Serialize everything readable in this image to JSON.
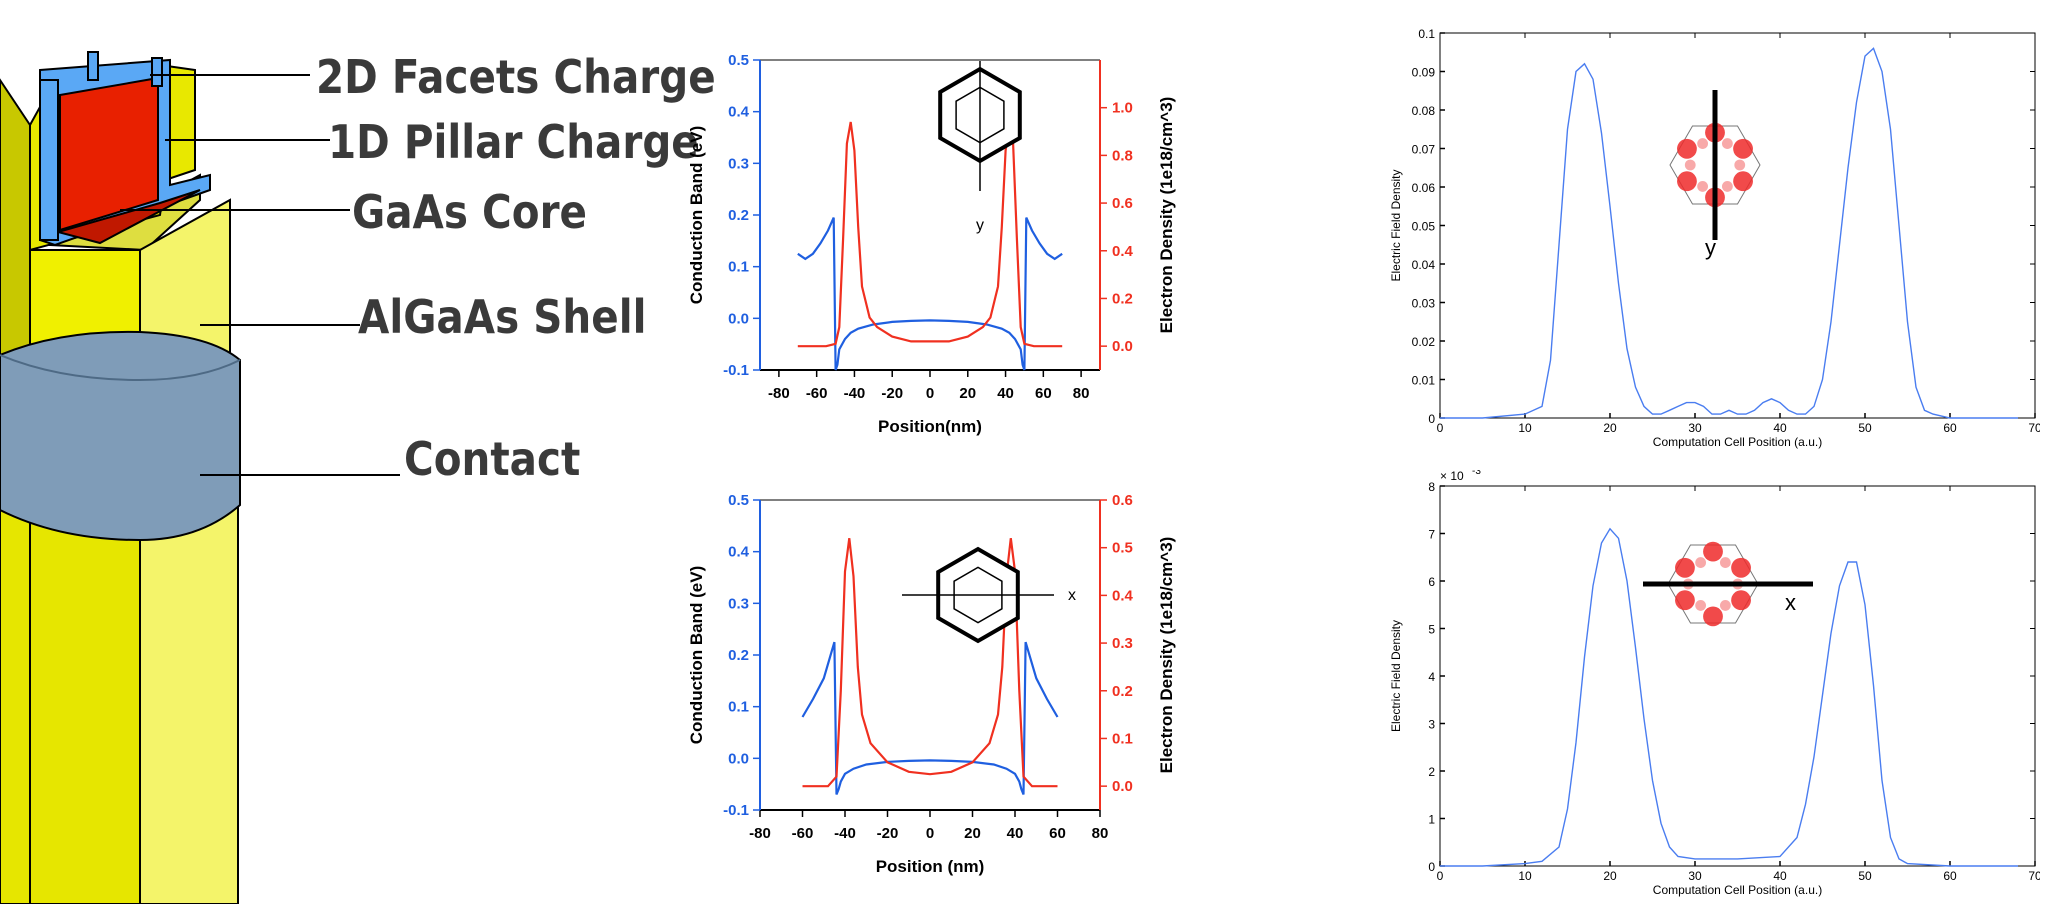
{
  "structure": {
    "labels": [
      "2D Facets Charge",
      "1D Pillar Charge",
      "GaAs Core",
      "AlGaAs Shell",
      "Contact"
    ],
    "colors": {
      "shell": "#f0f000",
      "core": "#e82000",
      "pillar": "#4aa0f0",
      "contact": "#7f9cb8"
    }
  },
  "chart_data": [
    {
      "type": "line",
      "id": "band-y",
      "xlabel": "Position(nm)",
      "ylabel": "Conduction Band (eV)",
      "ylabel_right": "Electron Density (1e18/cm^3)",
      "xlim": [
        -90,
        90
      ],
      "ylim": [
        -0.1,
        0.5
      ],
      "ylim_right": [
        -0.1,
        1.2
      ],
      "xticks": [
        "-80",
        "-60",
        "-40",
        "-20",
        "0",
        "20",
        "40",
        "60",
        "80"
      ],
      "yticks": [
        "-0.1",
        "0.0",
        "0.1",
        "0.2",
        "0.3",
        "0.4",
        "0.5"
      ],
      "yticks_right": [
        "0.0",
        "0.2",
        "0.4",
        "0.6",
        "0.8",
        "1.0"
      ],
      "inset_label": "y",
      "series": [
        {
          "axis": "left",
          "color": "#1f5fe0",
          "x": [
            -70,
            -66,
            -62,
            -58,
            -54,
            -51,
            -50,
            -49,
            -48,
            -45,
            -42,
            -38,
            -30,
            -20,
            -10,
            0,
            10,
            20,
            30,
            38,
            42,
            45,
            48,
            49,
            50,
            51,
            54,
            58,
            62,
            66,
            70
          ],
          "y": [
            0.125,
            0.115,
            0.125,
            0.145,
            0.17,
            0.195,
            -0.1,
            -0.09,
            -0.06,
            -0.04,
            -0.028,
            -0.02,
            -0.012,
            -0.007,
            -0.005,
            -0.004,
            -0.005,
            -0.007,
            -0.012,
            -0.02,
            -0.028,
            -0.04,
            -0.06,
            -0.09,
            -0.1,
            0.195,
            0.17,
            0.145,
            0.125,
            0.115,
            0.125
          ]
        },
        {
          "axis": "right",
          "color": "#f03020",
          "x": [
            -70,
            -55,
            -50,
            -48,
            -46,
            -44,
            -42,
            -40,
            -38,
            -36,
            -32,
            -28,
            -20,
            -10,
            0,
            10,
            20,
            28,
            32,
            36,
            38,
            40,
            42,
            44,
            46,
            48,
            50,
            55,
            70
          ],
          "y": [
            0.0,
            0.0,
            0.01,
            0.08,
            0.45,
            0.85,
            0.94,
            0.82,
            0.5,
            0.25,
            0.12,
            0.08,
            0.04,
            0.02,
            0.02,
            0.02,
            0.04,
            0.08,
            0.12,
            0.25,
            0.5,
            0.82,
            0.94,
            0.85,
            0.45,
            0.08,
            0.01,
            0.0,
            0.0
          ]
        }
      ]
    },
    {
      "type": "line",
      "id": "band-x",
      "xlabel": "Position (nm)",
      "ylabel": "Conduction Band (eV)",
      "ylabel_right": "Electron Density (1e18/cm^3)",
      "xlim": [
        -80,
        80
      ],
      "ylim": [
        -0.1,
        0.5
      ],
      "ylim_right": [
        -0.05,
        0.6
      ],
      "xticks": [
        "-80",
        "-60",
        "-40",
        "-20",
        "0",
        "20",
        "40",
        "60",
        "80"
      ],
      "yticks": [
        "-0.1",
        "0.0",
        "0.1",
        "0.2",
        "0.3",
        "0.4",
        "0.5"
      ],
      "yticks_right": [
        "0.0",
        "0.1",
        "0.2",
        "0.3",
        "0.4",
        "0.5",
        "0.6"
      ],
      "inset_label": "x",
      "series": [
        {
          "axis": "left",
          "color": "#1f5fe0",
          "x": [
            -60,
            -55,
            -50,
            -45,
            -44,
            -43,
            -42,
            -40,
            -36,
            -30,
            -20,
            -10,
            0,
            10,
            20,
            30,
            36,
            40,
            42,
            43,
            44,
            45,
            50,
            55,
            60
          ],
          "y": [
            0.08,
            0.115,
            0.155,
            0.225,
            -0.07,
            -0.06,
            -0.045,
            -0.03,
            -0.02,
            -0.012,
            -0.007,
            -0.005,
            -0.004,
            -0.005,
            -0.007,
            -0.012,
            -0.02,
            -0.03,
            -0.045,
            -0.06,
            -0.07,
            0.225,
            0.155,
            0.115,
            0.08
          ]
        },
        {
          "axis": "right",
          "color": "#f03020",
          "x": [
            -60,
            -48,
            -44,
            -42,
            -40,
            -38,
            -36,
            -34,
            -32,
            -28,
            -20,
            -10,
            0,
            10,
            20,
            28,
            32,
            34,
            36,
            38,
            40,
            42,
            44,
            48,
            60
          ],
          "y": [
            0.0,
            0.0,
            0.02,
            0.2,
            0.45,
            0.52,
            0.44,
            0.25,
            0.15,
            0.09,
            0.05,
            0.03,
            0.025,
            0.03,
            0.05,
            0.09,
            0.15,
            0.25,
            0.44,
            0.52,
            0.45,
            0.2,
            0.02,
            0.0,
            0.0
          ]
        }
      ]
    },
    {
      "type": "line",
      "id": "field-y",
      "xlabel": "Computation Cell Position (a.u.)",
      "ylabel": "Electric Field Density",
      "xlim": [
        0,
        70
      ],
      "ylim": [
        0,
        0.1
      ],
      "xticks": [
        "0",
        "10",
        "20",
        "30",
        "40",
        "50",
        "60",
        "70"
      ],
      "yticks": [
        "0",
        "0.01",
        "0.02",
        "0.03",
        "0.04",
        "0.05",
        "0.06",
        "0.07",
        "0.08",
        "0.09",
        "0.1"
      ],
      "inset_label": "y",
      "series": [
        {
          "color": "#4a7df0",
          "x": [
            0,
            5,
            10,
            12,
            13,
            14,
            15,
            16,
            17,
            18,
            19,
            20,
            21,
            22,
            23,
            24,
            25,
            26,
            27,
            28,
            29,
            30,
            31,
            32,
            33,
            34,
            35,
            36,
            37,
            38,
            39,
            40,
            41,
            42,
            43,
            44,
            45,
            46,
            47,
            48,
            49,
            50,
            51,
            52,
            53,
            54,
            55,
            56,
            57,
            58,
            60,
            65,
            68
          ],
          "y": [
            0,
            0,
            0.001,
            0.003,
            0.015,
            0.045,
            0.075,
            0.09,
            0.092,
            0.088,
            0.074,
            0.055,
            0.035,
            0.018,
            0.008,
            0.003,
            0.001,
            0.001,
            0.002,
            0.003,
            0.004,
            0.004,
            0.003,
            0.001,
            0.001,
            0.002,
            0.001,
            0.001,
            0.002,
            0.004,
            0.005,
            0.004,
            0.002,
            0.001,
            0.001,
            0.003,
            0.01,
            0.025,
            0.045,
            0.065,
            0.082,
            0.094,
            0.096,
            0.09,
            0.075,
            0.05,
            0.025,
            0.008,
            0.002,
            0.001,
            0,
            0,
            0
          ]
        }
      ]
    },
    {
      "type": "line",
      "id": "field-x",
      "xlabel": "Computation Cell Position (a.u.)",
      "ylabel": "Electric Field Density",
      "multiplier": "× 10",
      "multiplier_exp": "-3",
      "xlim": [
        0,
        70
      ],
      "ylim": [
        0,
        8
      ],
      "xticks": [
        "0",
        "10",
        "20",
        "30",
        "40",
        "50",
        "60",
        "70"
      ],
      "yticks": [
        "0",
        "1",
        "2",
        "3",
        "4",
        "5",
        "6",
        "7",
        "8"
      ],
      "inset_label": "x",
      "series": [
        {
          "color": "#4a7df0",
          "x": [
            0,
            5,
            10,
            12,
            14,
            15,
            16,
            17,
            18,
            19,
            20,
            21,
            22,
            23,
            24,
            25,
            26,
            27,
            28,
            30,
            35,
            40,
            42,
            43,
            44,
            45,
            46,
            47,
            48,
            49,
            50,
            51,
            52,
            53,
            54,
            55,
            60,
            65,
            68
          ],
          "y": [
            0,
            0,
            0.05,
            0.1,
            0.4,
            1.2,
            2.6,
            4.4,
            5.9,
            6.8,
            7.1,
            6.9,
            6.0,
            4.6,
            3.1,
            1.8,
            0.9,
            0.4,
            0.2,
            0.15,
            0.15,
            0.2,
            0.6,
            1.3,
            2.3,
            3.6,
            4.9,
            5.9,
            6.4,
            6.4,
            5.5,
            3.8,
            1.8,
            0.6,
            0.15,
            0.05,
            0,
            0,
            0
          ]
        }
      ]
    }
  ]
}
